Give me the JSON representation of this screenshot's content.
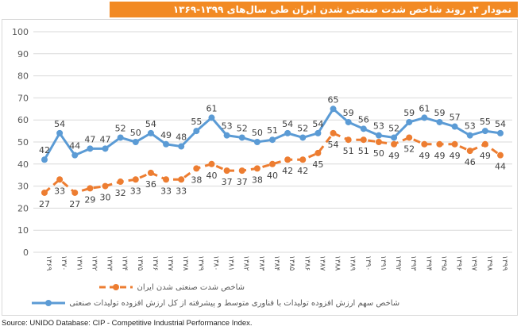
{
  "title": "نمودار ۳. روند شاخص شدت صنعتی شدن ایران طی سال‌های ۱۳۹۹-۱۳۶۹",
  "source": "Source: UNIDO Database: CIP - Competitive Industrial Performance Index.",
  "chart_data": {
    "type": "line",
    "categories": [
      "۱۳۶۹",
      "۱۳۷۰",
      "۱۳۷۱",
      "۱۳۷۲",
      "۱۳۷۳",
      "۱۳۷۴",
      "۱۳۷۵",
      "۱۳۷۶",
      "۱۳۷۷",
      "۱۳۷۸",
      "۱۳۷۹",
      "۱۳۸۰",
      "۱۳۸۱",
      "۱۳۸۲",
      "۱۳۸۳",
      "۱۳۸۴",
      "۱۳۸۵",
      "۱۳۸۶",
      "۱۳۸۷",
      "۱۳۸۸",
      "۱۳۸۹",
      "۱۳۹۰",
      "۱۳۹۱",
      "۱۳۹۲",
      "۱۳۹۳",
      "۱۳۹۴",
      "۱۳۹۵",
      "۱۳۹۶",
      "۱۳۹۷",
      "۱۳۹۸",
      "۱۳۹۹"
    ],
    "ylim": [
      0,
      100
    ],
    "yticks": [
      0,
      10,
      20,
      30,
      40,
      50,
      60,
      70,
      80,
      90,
      100
    ],
    "grid": true,
    "legend_placement": "bottom",
    "series": [
      {
        "name": "شاخص سهم ارزش افزوده تولیدات با فناوری متوسط و پیشرفته از کل ارزش افزوده تولیدات صنعتی",
        "color": "#5b9bd5",
        "style": "solid",
        "values": [
          42,
          54,
          44,
          47,
          47,
          52,
          50,
          54,
          49,
          48,
          55,
          61,
          53,
          52,
          50,
          51,
          54,
          52,
          54,
          65,
          59,
          56,
          53,
          52,
          59,
          61,
          59,
          57,
          53,
          55,
          54
        ]
      },
      {
        "name": "شاخص شدت صنعتی شدن ایران",
        "color": "#ed7d31",
        "style": "dashed",
        "values": [
          27,
          33,
          27,
          29,
          30,
          32,
          33,
          36,
          33,
          33,
          38,
          40,
          37,
          37,
          38,
          40,
          42,
          42,
          45,
          54,
          51,
          51,
          50,
          49,
          52,
          49,
          49,
          49,
          46,
          49,
          44
        ]
      }
    ]
  }
}
